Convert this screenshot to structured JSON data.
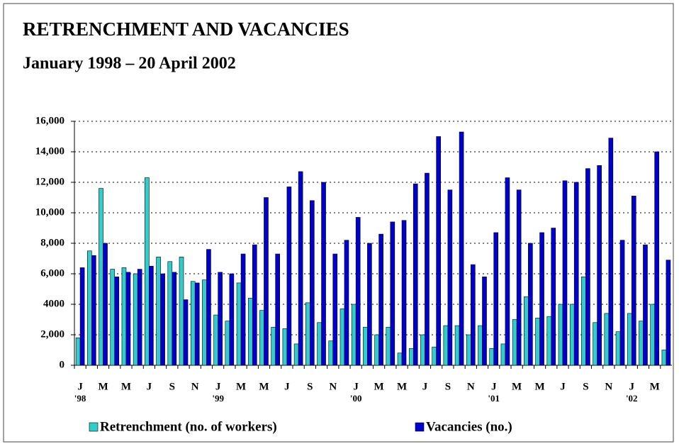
{
  "chart_data": {
    "type": "bar",
    "title": "RETRENCHMENT AND VACANCIES",
    "subtitle": "January 1998 – 20 April 2002",
    "categories": [
      "J",
      null,
      "M",
      null,
      "M",
      null,
      "J",
      null,
      "S",
      null,
      "N",
      null,
      "J",
      null,
      "M",
      null,
      "M",
      null,
      "J",
      null,
      "S",
      null,
      "N",
      null,
      "J",
      null,
      "M",
      null,
      "M",
      null,
      "J",
      null,
      "S",
      null,
      "N",
      null,
      "J",
      null,
      "M",
      null,
      "M",
      null,
      "J",
      null,
      "S",
      null,
      "N",
      null,
      "J",
      null,
      "M",
      null
    ],
    "category_years": [
      "'98",
      null,
      null,
      null,
      null,
      null,
      null,
      null,
      null,
      null,
      null,
      null,
      "'99",
      null,
      null,
      null,
      null,
      null,
      null,
      null,
      null,
      null,
      null,
      null,
      "'00",
      null,
      null,
      null,
      null,
      null,
      null,
      null,
      null,
      null,
      null,
      null,
      "'01",
      null,
      null,
      null,
      null,
      null,
      null,
      null,
      null,
      null,
      null,
      null,
      "'02",
      null,
      null,
      null
    ],
    "series": [
      {
        "name": "Retrenchment (no. of workers)",
        "color": "#33cccc",
        "values": [
          1800,
          7500,
          11600,
          6300,
          6400,
          6000,
          12300,
          7100,
          6800,
          7100,
          5500,
          5600,
          3300,
          2900,
          5400,
          4400,
          3600,
          2500,
          2400,
          1400,
          4100,
          2800,
          1600,
          3700,
          4000,
          2500,
          2000,
          2500,
          800,
          1100,
          2000,
          1200,
          2600,
          2600,
          2000,
          2600,
          1100,
          1400,
          3000,
          4500,
          3100,
          3200,
          4000,
          4000,
          5800,
          2800,
          3400,
          2200,
          3400,
          2900,
          4000,
          1000
        ]
      },
      {
        "name": "Vacancies (no.)",
        "color": "#0000cc",
        "values": [
          6400,
          7200,
          8000,
          5800,
          6100,
          6300,
          6500,
          6000,
          6100,
          4300,
          5400,
          7600,
          6100,
          6000,
          7300,
          7900,
          11000,
          7300,
          11700,
          12700,
          10800,
          12000,
          7300,
          8200,
          9700,
          8000,
          8600,
          9400,
          9500,
          11900,
          12600,
          15000,
          11500,
          15300,
          6600,
          5800,
          8700,
          12300,
          11500,
          8000,
          8700,
          9000,
          12100,
          12000,
          12900,
          13100,
          14900,
          8200,
          11100,
          7900,
          14000,
          6900
        ]
      }
    ],
    "ylim": [
      0,
      16000
    ],
    "yticks": [
      0,
      {
        "value": 2000,
        "label": "2,000"
      },
      {
        "value": 4000,
        "label": "4000"
      },
      {
        "value": 6000,
        "label": "6,000"
      },
      {
        "value": 8000,
        "label": "8,000"
      },
      {
        "value": 10000,
        "label": "10,000"
      },
      {
        "value": 12000,
        "label": "12,000"
      },
      {
        "value": 14000,
        "label": "14,000"
      },
      {
        "value": 16000,
        "label": "16,000"
      }
    ],
    "grid": true
  }
}
